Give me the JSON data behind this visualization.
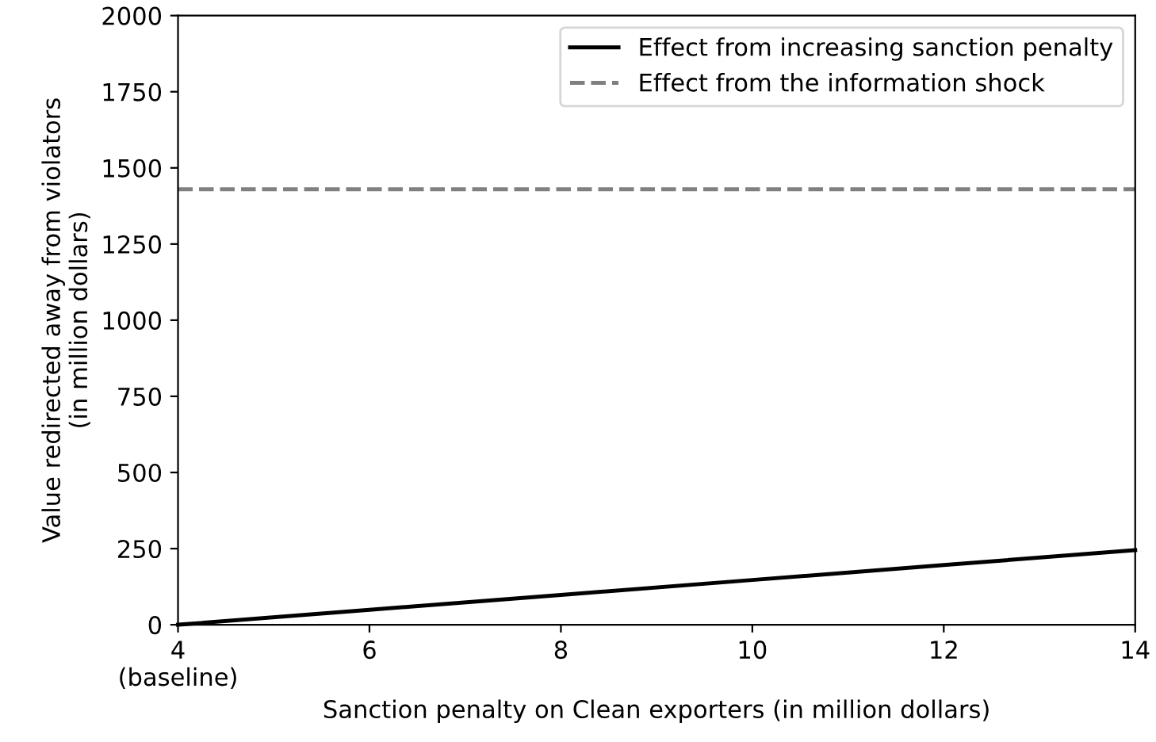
{
  "chart_data": {
    "type": "line",
    "xlabel": "Sanction penalty on Clean exporters (in million dollars)",
    "ylabel": "Value redirected away from violators\n(in million dollars)",
    "series": [
      {
        "name": "Effect from increasing sanction penalty",
        "color": "#000000",
        "x": [
          4,
          6,
          8,
          10,
          12,
          14
        ],
        "values": [
          0,
          49,
          98,
          147,
          196,
          245
        ],
        "line_style": "solid"
      }
    ],
    "ref_lines": [
      {
        "axis": "y",
        "value": 1430,
        "label": "Effect from the information shock",
        "color": "#808080",
        "line_style": "dashed"
      }
    ],
    "xlim": [
      4,
      14
    ],
    "xticks": [
      {
        "value": 4,
        "label": "4\n(baseline)"
      },
      6,
      8,
      10,
      12,
      14
    ],
    "ylim": [
      0,
      2000
    ],
    "yticks": [
      0,
      250,
      500,
      750,
      1000,
      1250,
      1500,
      1750,
      2000
    ],
    "legend": "top right",
    "grid": false,
    "marker": "none"
  }
}
